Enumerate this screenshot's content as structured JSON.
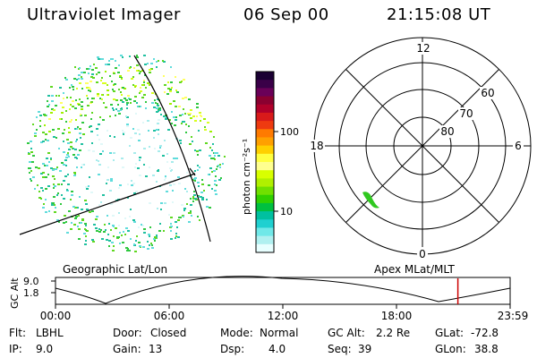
{
  "header": {
    "title": "Ultraviolet Imager",
    "date": "06 Sep 00",
    "time": "21:15:08 UT"
  },
  "colorbar": {
    "units_label": "photon cm⁻²s⁻¹",
    "ticks": [
      "100",
      "10"
    ],
    "colors": [
      "#1a0033",
      "#3a0048",
      "#6a0058",
      "#8a0030",
      "#b0002a",
      "#d81a1a",
      "#ee3a10",
      "#ff7a00",
      "#ffa000",
      "#ffd000",
      "#ffff40",
      "#ffff90",
      "#d8ff00",
      "#b0f000",
      "#70e000",
      "#30d000",
      "#00c040",
      "#00c0a0",
      "#20d0d0",
      "#70e8e8",
      "#b0f0f0",
      "#e8ffff"
    ]
  },
  "polar_plot": {
    "mlt_labels": {
      "top": "12",
      "left": "18",
      "right": "6",
      "bottom": "0"
    },
    "lat_labels": [
      "60",
      "70",
      "80"
    ]
  },
  "timeline": {
    "left_label": "Geographic Lat/Lon",
    "right_label": "Apex MLat/MLT",
    "y_axis_title": "GC Alt",
    "y_ticks": [
      "9.0",
      "1.8"
    ],
    "x_ticks": [
      "00:00",
      "06:00",
      "12:00",
      "18:00",
      "23:59"
    ],
    "marker_time_fraction": 0.885,
    "marker_color": "#cc0000"
  },
  "info": {
    "row1": [
      {
        "key": "Flt:",
        "value": "LBHL"
      },
      {
        "key": "Door:",
        "value": "Closed"
      },
      {
        "key": "Mode:",
        "value": "Normal"
      },
      {
        "key": "GC Alt:",
        "value": "2.2 Re"
      },
      {
        "key": "GLat:",
        "value": "-72.8"
      }
    ],
    "row2": [
      {
        "key": "IP:",
        "value": "9.0"
      },
      {
        "key": "Gain:",
        "value": "13"
      },
      {
        "key": "Dsp:",
        "value": "4.0"
      },
      {
        "key": "Seq:",
        "value": "39"
      },
      {
        "key": "GLon:",
        "value": "38.8"
      }
    ]
  }
}
